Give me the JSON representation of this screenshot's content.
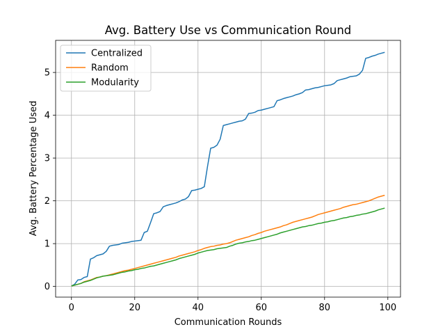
{
  "chart_data": {
    "type": "line",
    "title": "Avg. Battery Use vs Communication Round",
    "xlabel": "Communication Rounds",
    "ylabel": "Avg. Battery Percentage Used",
    "xlim": [
      -5,
      104
    ],
    "ylim": [
      -0.25,
      5.75
    ],
    "xticks": [
      0,
      20,
      40,
      60,
      80,
      100
    ],
    "yticks": [
      0,
      1,
      2,
      3,
      4,
      5
    ],
    "grid": true,
    "legend_position": "top-left",
    "x": [
      0,
      1,
      2,
      3,
      4,
      5,
      6,
      7,
      8,
      9,
      10,
      11,
      12,
      13,
      14,
      15,
      16,
      17,
      18,
      19,
      20,
      21,
      22,
      23,
      24,
      25,
      26,
      27,
      28,
      29,
      30,
      31,
      32,
      33,
      34,
      35,
      36,
      37,
      38,
      39,
      40,
      41,
      42,
      43,
      44,
      45,
      46,
      47,
      48,
      49,
      50,
      51,
      52,
      53,
      54,
      55,
      56,
      57,
      58,
      59,
      60,
      61,
      62,
      63,
      64,
      65,
      66,
      67,
      68,
      69,
      70,
      71,
      72,
      73,
      74,
      75,
      76,
      77,
      78,
      79,
      80,
      81,
      82,
      83,
      84,
      85,
      86,
      87,
      88,
      89,
      90,
      91,
      92,
      93,
      94,
      95,
      96,
      97,
      98,
      99
    ],
    "series": [
      {
        "name": "Centralized",
        "color": "#1f77b4",
        "values": [
          0.01,
          0.05,
          0.15,
          0.16,
          0.21,
          0.23,
          0.64,
          0.67,
          0.72,
          0.74,
          0.76,
          0.82,
          0.94,
          0.96,
          0.97,
          0.98,
          1.01,
          1.02,
          1.03,
          1.05,
          1.06,
          1.07,
          1.08,
          1.26,
          1.29,
          1.49,
          1.7,
          1.72,
          1.75,
          1.86,
          1.89,
          1.91,
          1.93,
          1.95,
          1.98,
          2.02,
          2.04,
          2.1,
          2.24,
          2.25,
          2.27,
          2.29,
          2.33,
          2.8,
          3.23,
          3.25,
          3.3,
          3.44,
          3.76,
          3.78,
          3.8,
          3.82,
          3.84,
          3.86,
          3.87,
          3.91,
          4.04,
          4.05,
          4.07,
          4.11,
          4.12,
          4.14,
          4.16,
          4.18,
          4.2,
          4.34,
          4.36,
          4.39,
          4.41,
          4.43,
          4.45,
          4.48,
          4.5,
          4.53,
          4.59,
          4.6,
          4.62,
          4.64,
          4.65,
          4.67,
          4.69,
          4.7,
          4.71,
          4.74,
          4.81,
          4.83,
          4.85,
          4.87,
          4.9,
          4.91,
          4.92,
          4.96,
          5.05,
          5.33,
          5.35,
          5.38,
          5.4,
          5.43,
          5.45,
          5.47
        ]
      },
      {
        "name": "Random",
        "color": "#ff7f0e",
        "values": [
          0.01,
          0.03,
          0.05,
          0.07,
          0.11,
          0.13,
          0.15,
          0.18,
          0.21,
          0.22,
          0.24,
          0.25,
          0.27,
          0.29,
          0.31,
          0.33,
          0.35,
          0.37,
          0.38,
          0.4,
          0.42,
          0.44,
          0.46,
          0.48,
          0.5,
          0.52,
          0.54,
          0.56,
          0.58,
          0.6,
          0.62,
          0.64,
          0.66,
          0.68,
          0.71,
          0.73,
          0.75,
          0.77,
          0.79,
          0.81,
          0.84,
          0.86,
          0.89,
          0.91,
          0.93,
          0.94,
          0.96,
          0.97,
          0.99,
          1.0,
          1.02,
          1.05,
          1.08,
          1.1,
          1.12,
          1.14,
          1.16,
          1.19,
          1.21,
          1.24,
          1.26,
          1.29,
          1.31,
          1.33,
          1.35,
          1.37,
          1.39,
          1.42,
          1.44,
          1.47,
          1.5,
          1.52,
          1.54,
          1.56,
          1.58,
          1.6,
          1.62,
          1.65,
          1.68,
          1.7,
          1.72,
          1.74,
          1.76,
          1.78,
          1.8,
          1.82,
          1.85,
          1.87,
          1.89,
          1.91,
          1.92,
          1.94,
          1.96,
          1.98,
          2.0,
          2.03,
          2.06,
          2.09,
          2.11,
          2.13
        ]
      },
      {
        "name": "Modularity",
        "color": "#2ca02c",
        "values": [
          0.01,
          0.03,
          0.05,
          0.07,
          0.1,
          0.12,
          0.14,
          0.17,
          0.2,
          0.22,
          0.24,
          0.25,
          0.26,
          0.27,
          0.29,
          0.31,
          0.33,
          0.34,
          0.36,
          0.37,
          0.39,
          0.4,
          0.42,
          0.43,
          0.45,
          0.47,
          0.48,
          0.5,
          0.52,
          0.54,
          0.56,
          0.58,
          0.6,
          0.62,
          0.65,
          0.67,
          0.69,
          0.71,
          0.73,
          0.75,
          0.78,
          0.8,
          0.82,
          0.84,
          0.85,
          0.86,
          0.88,
          0.89,
          0.9,
          0.91,
          0.94,
          0.96,
          0.99,
          1.01,
          1.02,
          1.04,
          1.05,
          1.07,
          1.08,
          1.1,
          1.12,
          1.14,
          1.16,
          1.18,
          1.2,
          1.22,
          1.25,
          1.27,
          1.29,
          1.31,
          1.33,
          1.35,
          1.37,
          1.39,
          1.4,
          1.42,
          1.43,
          1.45,
          1.47,
          1.48,
          1.5,
          1.51,
          1.53,
          1.54,
          1.56,
          1.58,
          1.6,
          1.61,
          1.63,
          1.64,
          1.66,
          1.67,
          1.69,
          1.7,
          1.72,
          1.74,
          1.76,
          1.79,
          1.81,
          1.83
        ]
      }
    ]
  }
}
